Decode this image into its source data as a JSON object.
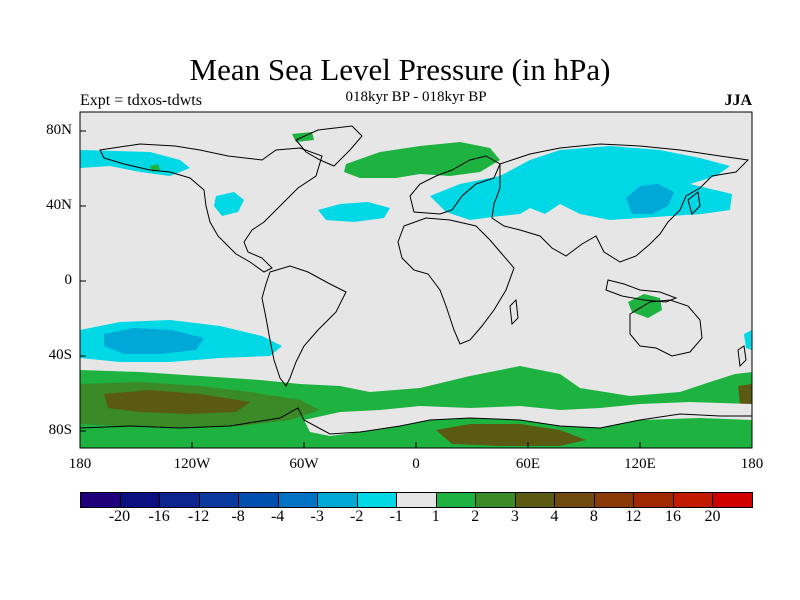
{
  "title": "Mean Sea Level Pressure (in hPa)",
  "experiment_label": "Expt = tdxos-tdwts",
  "period_label": "018kyr BP - 018kyr BP",
  "season_label": "JJA",
  "map": {
    "projection": "cylindrical-equidistant",
    "background_color": "#e6e6e6",
    "lat_ticks": [
      "80N",
      "40N",
      "0",
      "40S",
      "80S"
    ],
    "lon_ticks": [
      "180",
      "120W",
      "60W",
      "0",
      "60E",
      "120E",
      "180"
    ],
    "regions": [
      {
        "name": "north-pacific-negative",
        "level": "-2 to -1",
        "color": "#00d9e5"
      },
      {
        "name": "north-atlantic-negative",
        "level": "-2 to -1",
        "color": "#00d9e5"
      },
      {
        "name": "eurasia-negative",
        "level": "-2 to -1",
        "color": "#00d9e5"
      },
      {
        "name": "east-asia-strong-negative",
        "level": "-3 to -2",
        "color": "#00a8d7"
      },
      {
        "name": "south-pacific-negative",
        "level": "-2 to -1",
        "color": "#00d9e5"
      },
      {
        "name": "south-pacific-core-negative",
        "level": "-3 to -2",
        "color": "#00a8d7"
      },
      {
        "name": "nordic-seas-positive",
        "level": "1 to 2",
        "color": "#1eb241"
      },
      {
        "name": "maritime-continent-positive",
        "level": "1 to 2",
        "color": "#1eb241"
      },
      {
        "name": "southern-ocean-positive",
        "level": "1 to 3",
        "color": "#1eb241"
      },
      {
        "name": "southern-ocean-core-positive",
        "level": "3 to 4",
        "color": "#5a5a12"
      }
    ]
  },
  "colorbar": {
    "colors": [
      "#20007a",
      "#0b0f80",
      "#0c258f",
      "#0a3a9e",
      "#0050b0",
      "#0073c4",
      "#00a8d7",
      "#00d9e5",
      "#e6e6e6",
      "#1eb241",
      "#3a8a28",
      "#5a5a12",
      "#6e4a0e",
      "#8a3a06",
      "#a02a00",
      "#c01a00",
      "#d00000"
    ],
    "labels": [
      "-20",
      "-16",
      "-12",
      "-8",
      "-4",
      "-3",
      "-2",
      "-1",
      "1",
      "2",
      "3",
      "4",
      "8",
      "12",
      "16",
      "20"
    ]
  }
}
